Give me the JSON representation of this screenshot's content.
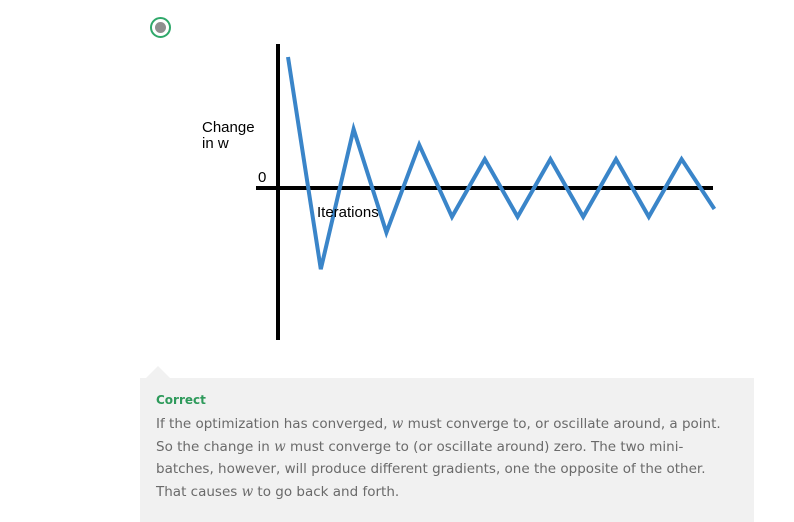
{
  "option": {
    "selected": true,
    "accent_color": "#2fa86a"
  },
  "figure": {
    "ylabel_line1": "Change",
    "ylabel_line2": "in w",
    "zero_label": "0",
    "xlabel": "Iterations",
    "line_color": "#3a85c9"
  },
  "chart_data": {
    "type": "line",
    "title": "",
    "xlabel": "Iterations",
    "ylabel": "Change in w",
    "yticks": [
      "0"
    ],
    "grid": false,
    "series": [
      {
        "x": [
          0,
          1,
          2,
          3,
          4,
          5,
          6,
          7,
          8,
          9,
          10,
          11,
          12,
          13
        ],
        "values": [
          1.0,
          -0.62,
          0.45,
          -0.34,
          0.33,
          -0.22,
          0.22,
          -0.22,
          0.22,
          -0.22,
          0.22,
          -0.22,
          0.22,
          -0.16
        ]
      }
    ]
  },
  "feedback": {
    "title": "Correct",
    "line1_a": "If the optimization has converged, ",
    "var": "w",
    "line1_b": " must converge to, or oscillate around, a point.",
    "line2_a": "So the change in ",
    "line2_b": " must converge to (or oscillate around) zero. The two mini-",
    "line3": "batches, however, will produce different gradients, one the opposite of the other.",
    "line4_a": "That causes ",
    "line4_b": " to go back and forth."
  }
}
